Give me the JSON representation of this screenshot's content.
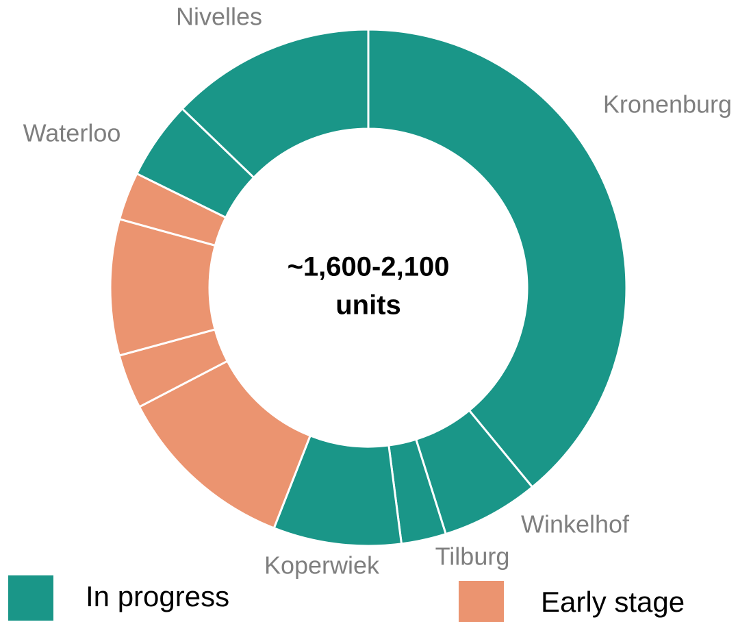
{
  "chart_data": {
    "type": "donut",
    "categories": [
      "Kronenburg",
      "Winkelhof",
      "Tilburg",
      "Koperwiek",
      null,
      null,
      null,
      null,
      "Waterloo",
      "Nivelles"
    ],
    "values": [
      39,
      6.1,
      2.8,
      8,
      11.4,
      3.4,
      8.5,
      3,
      4.9,
      12.8
    ],
    "colors": [
      "#1a9688",
      "#1a9688",
      "#1a9688",
      "#1a9688",
      "#eb9470",
      "#eb9470",
      "#eb9470",
      "#eb9470",
      "#1a9688",
      "#1a9688"
    ],
    "center_label": [
      "~1,600-2,100",
      "units"
    ],
    "legend": [
      {
        "name": "In progress",
        "color": "#1a9688"
      },
      {
        "name": "Early stage",
        "color": "#eb9470"
      }
    ]
  }
}
